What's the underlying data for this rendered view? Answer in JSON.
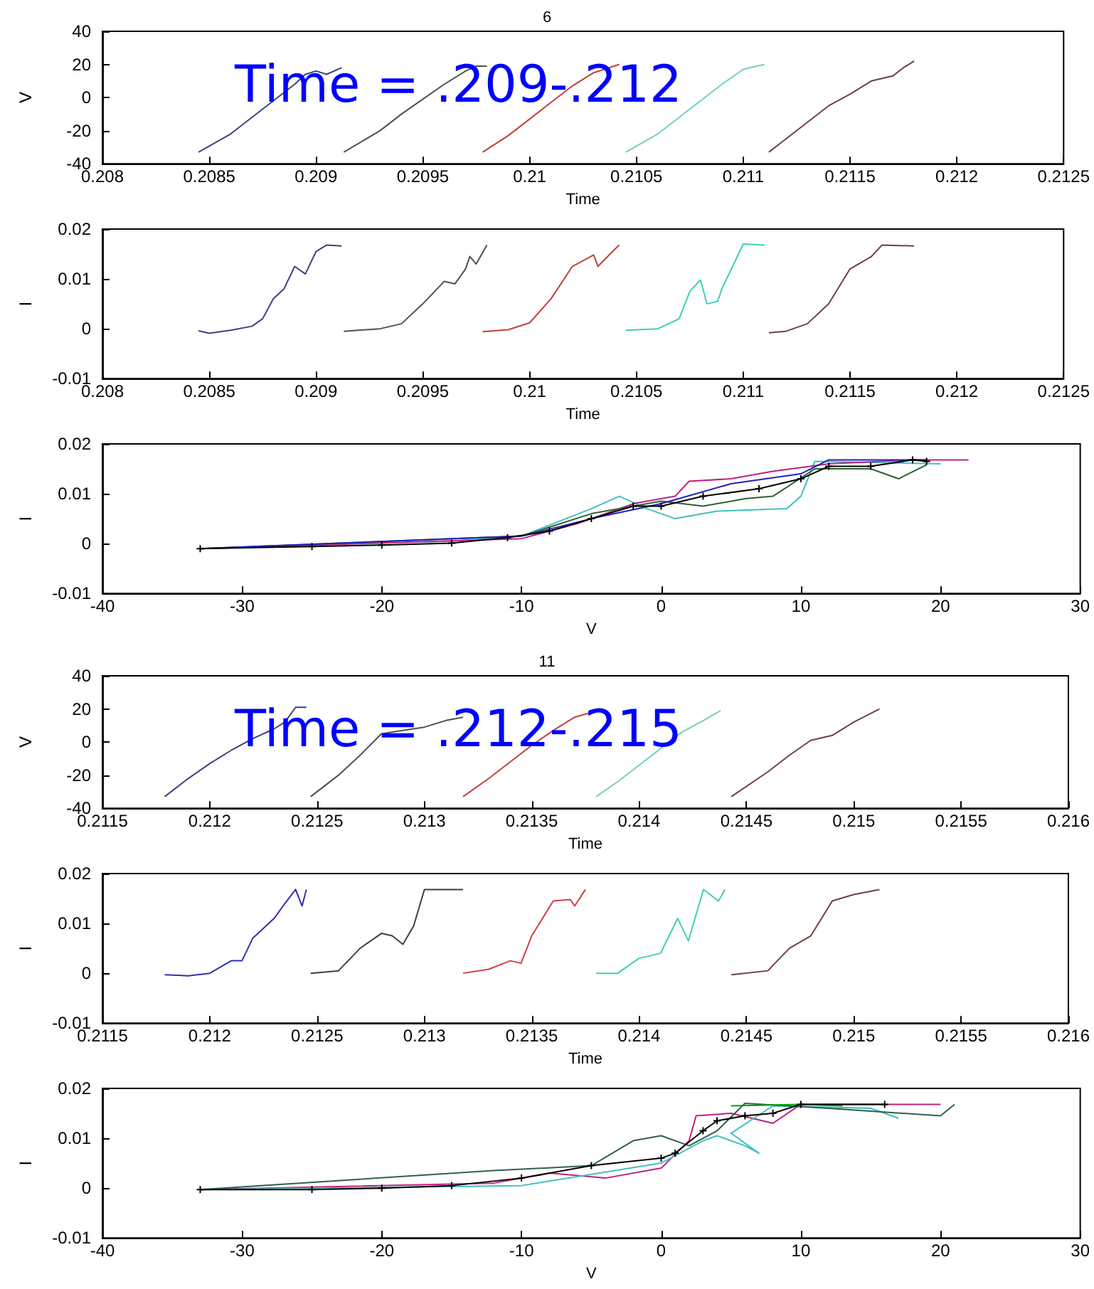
{
  "chart_data": [
    {
      "type": "line",
      "title": "6",
      "xlabel": "Time",
      "ylabel": "V",
      "annotations": [
        "Time = .209-.212"
      ],
      "xlim": [
        0.208,
        0.2125
      ],
      "xticks": [
        0.208,
        0.2085,
        0.209,
        0.2095,
        0.21,
        0.2105,
        0.211,
        0.2115,
        0.212,
        0.2125
      ],
      "ylim": [
        -40,
        40
      ],
      "yticks": [
        -40,
        -20,
        0,
        20,
        40
      ],
      "grid": false,
      "series": [
        {
          "color": "#404080",
          "x": [
            0.20845,
            0.2086,
            0.2087,
            0.2088,
            0.2089,
            0.20895,
            0.209,
            0.20905,
            0.20912
          ],
          "values": [
            -33,
            -22,
            -12,
            -2,
            8,
            14,
            16,
            14,
            18
          ]
        },
        {
          "color": "#505050",
          "x": [
            0.20913,
            0.2093,
            0.2094,
            0.2095,
            0.2096,
            0.2097,
            0.20975,
            0.2098
          ],
          "values": [
            -33,
            -20,
            -10,
            -1,
            8,
            16,
            19,
            19
          ]
        },
        {
          "color": "#c04040",
          "x": [
            0.20978,
            0.2099,
            0.21,
            0.2101,
            0.2102,
            0.2103,
            0.21042
          ],
          "values": [
            -33,
            -23,
            -13,
            -3,
            7,
            15,
            20
          ]
        },
        {
          "color": "#70d0c0",
          "x": [
            0.21045,
            0.2106,
            0.2107,
            0.2108,
            0.2109,
            0.211,
            0.2111
          ],
          "values": [
            -33,
            -22,
            -12,
            -2,
            8,
            17,
            20
          ]
        },
        {
          "color": "#704040",
          "x": [
            0.21112,
            0.2112,
            0.2113,
            0.2114,
            0.2115,
            0.2116,
            0.2117,
            0.21175,
            0.2118
          ],
          "values": [
            -33,
            -25,
            -15,
            -5,
            2,
            10,
            13,
            18,
            22
          ]
        }
      ]
    },
    {
      "type": "line",
      "xlabel": "Time",
      "ylabel": "I",
      "xlim": [
        0.208,
        0.2125
      ],
      "xticks": [
        0.208,
        0.2085,
        0.209,
        0.2095,
        0.21,
        0.2105,
        0.211,
        0.2115,
        0.212,
        0.2125
      ],
      "ylim": [
        -0.01,
        0.02
      ],
      "yticks": [
        -0.01,
        0,
        0.01,
        0.02
      ],
      "grid": false,
      "series": [
        {
          "color": "#404080",
          "x": [
            0.20845,
            0.2085,
            0.2086,
            0.2087,
            0.20875,
            0.2088,
            0.20885,
            0.2089,
            0.20895,
            0.209,
            0.20905,
            0.20912
          ],
          "values": [
            -0.0004,
            -0.0009,
            -0.0003,
            0.0005,
            0.002,
            0.006,
            0.008,
            0.0125,
            0.011,
            0.0155,
            0.0168,
            0.0166
          ]
        },
        {
          "color": "#505050",
          "x": [
            0.20913,
            0.2093,
            0.2094,
            0.2095,
            0.2096,
            0.20965,
            0.2097,
            0.20972,
            0.20975,
            0.2098
          ],
          "values": [
            -0.0005,
            0,
            0.001,
            0.005,
            0.0095,
            0.009,
            0.012,
            0.0145,
            0.013,
            0.0168
          ]
        },
        {
          "color": "#c04040",
          "x": [
            0.20978,
            0.2099,
            0.21,
            0.2101,
            0.2102,
            0.2103,
            0.21032,
            0.2104,
            0.21042
          ],
          "values": [
            -0.0006,
            -0.0002,
            0.0012,
            0.006,
            0.0125,
            0.0148,
            0.0125,
            0.016,
            0.0168
          ]
        },
        {
          "color": "#40d0b0",
          "x": [
            0.21045,
            0.2106,
            0.2107,
            0.21075,
            0.2108,
            0.21083,
            0.21088,
            0.2109,
            0.211,
            0.2111
          ],
          "values": [
            -0.0003,
            0,
            0.002,
            0.0075,
            0.0098,
            0.005,
            0.0055,
            0.008,
            0.017,
            0.0168
          ]
        },
        {
          "color": "#704040",
          "x": [
            0.21112,
            0.2112,
            0.2113,
            0.2114,
            0.2115,
            0.2116,
            0.21165,
            0.2118
          ],
          "values": [
            -0.0008,
            -0.0005,
            0.001,
            0.005,
            0.012,
            0.0145,
            0.0168,
            0.0166
          ]
        }
      ]
    },
    {
      "type": "line",
      "xlabel": "V",
      "ylabel": "I",
      "xlim": [
        -40,
        30
      ],
      "xticks": [
        -40,
        -30,
        -20,
        -10,
        0,
        10,
        20,
        30
      ],
      "ylim": [
        -0.01,
        0.02
      ],
      "yticks": [
        -0.01,
        0,
        0.01,
        0.02
      ],
      "grid": false,
      "series": [
        {
          "color": "#40c0c0",
          "x": [
            -33,
            -15,
            -10,
            -5,
            -3,
            -1,
            1,
            4,
            9,
            10,
            11,
            20
          ],
          "values": [
            -0.001,
            0.0005,
            0.0015,
            0.007,
            0.0095,
            0.007,
            0.005,
            0.0065,
            0.007,
            0.0095,
            0.0165,
            0.016
          ]
        },
        {
          "color": "#c02080",
          "x": [
            -33,
            -10,
            -6,
            -2,
            1,
            2,
            5,
            8,
            12,
            18,
            22
          ],
          "values": [
            -0.001,
            0.001,
            0.004,
            0.008,
            0.0095,
            0.0125,
            0.013,
            0.0145,
            0.016,
            0.0168,
            0.0168
          ]
        },
        {
          "color": "#306030",
          "x": [
            -33,
            -10,
            -5,
            0,
            3,
            6,
            8,
            11,
            15,
            17,
            19
          ],
          "values": [
            -0.001,
            0.0015,
            0.006,
            0.0085,
            0.0075,
            0.009,
            0.0095,
            0.015,
            0.015,
            0.013,
            0.0158
          ]
        },
        {
          "color": "#2020c0",
          "x": [
            -33,
            -10,
            -5,
            0,
            5,
            10,
            12,
            19
          ],
          "values": [
            -0.001,
            0.0015,
            0.005,
            0.008,
            0.012,
            0.014,
            0.0168,
            0.0168
          ]
        },
        {
          "color": "#000000",
          "marker": "cross",
          "x": [
            -33,
            -25,
            -20,
            -15,
            -11,
            -8,
            -5,
            -2,
            0,
            3,
            7,
            10,
            12,
            15,
            18,
            19
          ],
          "values": [
            -0.001,
            -0.0006,
            -0.0003,
            0.0001,
            0.0012,
            0.0025,
            0.005,
            0.0075,
            0.0075,
            0.0095,
            0.011,
            0.013,
            0.0155,
            0.0155,
            0.0168,
            0.0165
          ]
        }
      ]
    },
    {
      "type": "line",
      "title": "11",
      "xlabel": "Time",
      "ylabel": "V",
      "annotations": [
        "Time = .212-.215"
      ],
      "xlim": [
        0.2115,
        0.216
      ],
      "xticks": [
        0.2115,
        0.212,
        0.2125,
        0.213,
        0.2135,
        0.214,
        0.2145,
        0.215,
        0.2155,
        0.216
      ],
      "ylim": [
        -40,
        40
      ],
      "yticks": [
        -40,
        -20,
        0,
        20,
        40
      ],
      "grid": false,
      "series": [
        {
          "color": "#404080",
          "x": [
            0.21179,
            0.2119,
            0.212,
            0.2121,
            0.2122,
            0.2123,
            0.21235,
            0.2124,
            0.21245
          ],
          "values": [
            -33,
            -22,
            -13,
            -5,
            2,
            8,
            12,
            21,
            21
          ]
        },
        {
          "color": "#505050",
          "x": [
            0.21247,
            0.2126,
            0.2127,
            0.2128,
            0.2129,
            0.213,
            0.2131,
            0.21318
          ],
          "values": [
            -33,
            -20,
            -8,
            5,
            7,
            9,
            13,
            15
          ]
        },
        {
          "color": "#c04040",
          "x": [
            0.21318,
            0.2133,
            0.2134,
            0.2135,
            0.2136,
            0.2137,
            0.21378
          ],
          "values": [
            -33,
            -22,
            -12,
            -2,
            7,
            15,
            18
          ]
        },
        {
          "color": "#70d0c0",
          "x": [
            0.2138,
            0.2139,
            0.214,
            0.2141,
            0.2142,
            0.2143,
            0.21438
          ],
          "values": [
            -33,
            -24,
            -14,
            -4,
            6,
            13,
            19
          ]
        },
        {
          "color": "#704040",
          "x": [
            0.21443,
            0.2146,
            0.2147,
            0.2148,
            0.2149,
            0.215,
            0.21512
          ],
          "values": [
            -33,
            -18,
            -8,
            1,
            4,
            12,
            20
          ]
        }
      ]
    },
    {
      "type": "line",
      "xlabel": "Time",
      "ylabel": "I",
      "xlim": [
        0.2115,
        0.216
      ],
      "xticks": [
        0.2115,
        0.212,
        0.2125,
        0.213,
        0.2135,
        0.214,
        0.2145,
        0.215,
        0.2155,
        0.216
      ],
      "ylim": [
        -0.01,
        0.02
      ],
      "yticks": [
        -0.01,
        0,
        0.01,
        0.02
      ],
      "grid": false,
      "series": [
        {
          "color": "#3030b0",
          "x": [
            0.21179,
            0.2119,
            0.212,
            0.2121,
            0.21215,
            0.2122,
            0.2123,
            0.21235,
            0.2124,
            0.21243,
            0.21245
          ],
          "values": [
            -0.0003,
            -0.0005,
            0,
            0.0025,
            0.0025,
            0.007,
            0.011,
            0.014,
            0.0168,
            0.0135,
            0.0168
          ]
        },
        {
          "color": "#404040",
          "x": [
            0.21247,
            0.2126,
            0.2127,
            0.2128,
            0.21285,
            0.2129,
            0.21295,
            0.213,
            0.21318
          ],
          "values": [
            0,
            0.0005,
            0.005,
            0.008,
            0.0075,
            0.0058,
            0.0095,
            0.0168,
            0.0168
          ]
        },
        {
          "color": "#d04040",
          "x": [
            0.21318,
            0.2133,
            0.2134,
            0.21345,
            0.2135,
            0.2136,
            0.21368,
            0.2137,
            0.21375
          ],
          "values": [
            0,
            0.0008,
            0.0025,
            0.002,
            0.0075,
            0.0145,
            0.0148,
            0.0135,
            0.0168
          ]
        },
        {
          "color": "#40d0b0",
          "x": [
            0.2138,
            0.2139,
            0.214,
            0.2141,
            0.21418,
            0.21423,
            0.2143,
            0.21437,
            0.2144
          ],
          "values": [
            0,
            0,
            0.003,
            0.004,
            0.011,
            0.0065,
            0.0168,
            0.0145,
            0.0168
          ]
        },
        {
          "color": "#704040",
          "x": [
            0.21443,
            0.2146,
            0.2147,
            0.2148,
            0.2149,
            0.215,
            0.21512
          ],
          "values": [
            -0.0003,
            0.0005,
            0.005,
            0.0075,
            0.0145,
            0.0158,
            0.0168
          ]
        }
      ]
    },
    {
      "type": "line",
      "xlabel": "V",
      "ylabel": "I",
      "xlim": [
        -40,
        30
      ],
      "xticks": [
        -40,
        -30,
        -20,
        -10,
        0,
        10,
        20,
        30
      ],
      "ylim": [
        -0.01,
        0.02
      ],
      "yticks": [
        -0.01,
        0,
        0.01,
        0.02
      ],
      "grid": false,
      "series": [
        {
          "color": "#c02080",
          "x": [
            -33,
            -12,
            -8,
            -4,
            0,
            2,
            2.5,
            5,
            8,
            10,
            20
          ],
          "values": [
            -0.0003,
            0.001,
            0.003,
            0.002,
            0.004,
            0.0095,
            0.0145,
            0.015,
            0.013,
            0.0168,
            0.0168
          ]
        },
        {
          "color": "#40c0c0",
          "x": [
            -33,
            -10,
            0,
            3,
            4,
            6,
            7,
            5,
            8,
            15,
            17
          ],
          "values": [
            -0.0003,
            0.0005,
            0.005,
            0.0095,
            0.0105,
            0.0085,
            0.007,
            0.011,
            0.0165,
            0.016,
            0.014
          ]
        },
        {
          "color": "#306050",
          "x": [
            -33,
            -12,
            -5,
            -2,
            0,
            2,
            4,
            6,
            12,
            20,
            21
          ],
          "values": [
            -0.0003,
            0.0035,
            0.0045,
            0.0095,
            0.0105,
            0.0085,
            0.0115,
            0.017,
            0.016,
            0.0145,
            0.0168
          ]
        },
        {
          "color": "#00a000",
          "x": [
            5,
            10,
            13
          ],
          "values": [
            0.0165,
            0.0168,
            0.0165
          ]
        },
        {
          "color": "#000000",
          "marker": "cross",
          "x": [
            -33,
            -25,
            -20,
            -15,
            -10,
            -5,
            0,
            1,
            3,
            4,
            6,
            8,
            10,
            16
          ],
          "values": [
            -0.0003,
            -0.0003,
            0,
            0.0005,
            0.002,
            0.0045,
            0.006,
            0.007,
            0.0115,
            0.0135,
            0.0145,
            0.015,
            0.0168,
            0.0168
          ]
        }
      ]
    }
  ]
}
